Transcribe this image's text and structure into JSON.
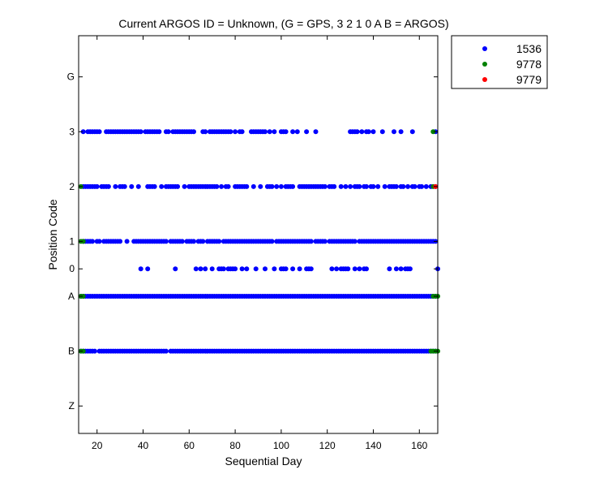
{
  "chart_data": {
    "type": "scatter",
    "title": "Current ARGOS ID = Unknown,  (G = GPS, 3 2 1 0 A B = ARGOS)",
    "xlabel": "Sequential Day",
    "ylabel": "Position Code",
    "xlim": [
      12,
      168
    ],
    "x_ticks": [
      20,
      40,
      60,
      80,
      100,
      120,
      140,
      160
    ],
    "y_categories": [
      "Z",
      "B",
      "A",
      "0",
      "1",
      "2",
      "3",
      "G"
    ],
    "y_category_values": [
      -2,
      0,
      2,
      3,
      4,
      6,
      8,
      10
    ],
    "ylim": [
      -3,
      11.5
    ],
    "grid": false,
    "legend_position": "outside-top-right",
    "series": [
      {
        "name": "1536",
        "color": "#0000ff",
        "points": {
          "3": [
            14,
            16,
            17,
            18,
            19,
            20,
            21,
            24,
            25,
            26,
            27,
            28,
            29,
            30,
            31,
            32,
            33,
            34,
            35,
            36,
            37,
            38,
            39,
            41,
            42,
            43,
            44,
            45,
            46,
            47,
            50,
            51,
            53,
            54,
            55,
            56,
            57,
            58,
            59,
            60,
            61,
            62,
            66,
            67,
            69,
            70,
            71,
            72,
            73,
            74,
            75,
            76,
            77,
            78,
            80,
            82,
            83,
            87,
            88,
            89,
            90,
            91,
            92,
            93,
            95,
            97,
            100,
            101,
            102,
            105,
            107,
            111,
            115,
            130,
            131,
            132,
            133,
            135,
            137,
            138,
            140,
            144,
            149,
            152,
            157,
            167
          ],
          "2": [
            14,
            15,
            16,
            17,
            18,
            19,
            20,
            22,
            23,
            24,
            25,
            28,
            30,
            31,
            32,
            35,
            38,
            42,
            43,
            44,
            45,
            48,
            50,
            51,
            52,
            53,
            54,
            55,
            58,
            60,
            61,
            62,
            63,
            64,
            65,
            66,
            67,
            68,
            69,
            70,
            71,
            72,
            74,
            76,
            77,
            80,
            81,
            82,
            83,
            84,
            85,
            88,
            91,
            94,
            95,
            96,
            98,
            100,
            102,
            103,
            104,
            105,
            108,
            109,
            110,
            111,
            112,
            113,
            114,
            115,
            116,
            117,
            118,
            119,
            121,
            122,
            123,
            126,
            128,
            130,
            132,
            133,
            134,
            136,
            137,
            139,
            140,
            142,
            145,
            147,
            148,
            149,
            150,
            152,
            153,
            155,
            157,
            158,
            160,
            161,
            163,
            165,
            167
          ],
          "1": [
            14,
            15,
            16,
            17,
            18,
            20,
            21,
            23,
            24,
            25,
            26,
            27,
            28,
            29,
            30,
            33,
            36,
            37,
            38,
            39,
            40,
            41,
            42,
            43,
            44,
            45,
            46,
            47,
            48,
            49,
            50,
            52,
            53,
            54,
            55,
            56,
            57,
            59,
            60,
            61,
            62,
            64,
            65,
            66,
            68,
            69,
            70,
            71,
            72,
            73,
            75,
            76,
            77,
            78,
            79,
            80,
            81,
            82,
            83,
            84,
            85,
            86,
            87,
            88,
            89,
            90,
            91,
            92,
            93,
            94,
            95,
            96,
            98,
            99,
            100,
            101,
            102,
            103,
            104,
            105,
            106,
            107,
            108,
            109,
            110,
            111,
            112,
            113,
            115,
            116,
            117,
            118,
            119,
            121,
            122,
            123,
            124,
            125,
            126,
            127,
            128,
            129,
            130,
            131,
            132,
            134,
            135,
            136,
            137,
            138,
            139,
            140,
            141,
            142,
            143,
            144,
            145,
            146,
            147,
            148,
            149,
            150,
            151,
            152,
            153,
            154,
            155,
            156,
            157,
            158,
            159,
            160,
            161,
            162,
            163,
            164,
            165,
            166,
            167
          ],
          "0": [
            39,
            42,
            54,
            63,
            65,
            67,
            70,
            73,
            74,
            75,
            77,
            78,
            79,
            80,
            83,
            85,
            89,
            93,
            97,
            100,
            101,
            102,
            105,
            108,
            111,
            112,
            113,
            122,
            124,
            126,
            127,
            128,
            129,
            132,
            134,
            136,
            137,
            147,
            150,
            152,
            154,
            155,
            156,
            168
          ],
          "A": [
            13,
            14,
            15,
            16,
            17,
            18,
            19,
            20,
            21,
            22,
            23,
            24,
            25,
            26,
            27,
            28,
            29,
            30,
            31,
            32,
            33,
            34,
            35,
            36,
            37,
            38,
            39,
            40,
            41,
            42,
            43,
            44,
            45,
            46,
            47,
            48,
            49,
            50,
            51,
            52,
            53,
            54,
            55,
            56,
            57,
            58,
            59,
            60,
            61,
            62,
            63,
            64,
            65,
            66,
            67,
            68,
            69,
            70,
            71,
            72,
            73,
            74,
            75,
            76,
            77,
            78,
            79,
            80,
            81,
            82,
            83,
            84,
            85,
            86,
            87,
            88,
            89,
            90,
            91,
            92,
            93,
            94,
            95,
            96,
            97,
            98,
            99,
            100,
            101,
            102,
            103,
            104,
            105,
            106,
            107,
            108,
            109,
            110,
            111,
            112,
            113,
            114,
            115,
            116,
            117,
            118,
            119,
            120,
            121,
            122,
            123,
            124,
            125,
            126,
            127,
            128,
            129,
            130,
            131,
            132,
            133,
            134,
            135,
            136,
            137,
            138,
            139,
            140,
            141,
            142,
            143,
            144,
            145,
            146,
            147,
            148,
            149,
            150,
            151,
            152,
            153,
            154,
            155,
            156,
            157,
            158,
            159,
            160,
            161,
            162,
            163,
            164,
            165,
            166,
            167
          ],
          "B": [
            13,
            14,
            15,
            16,
            17,
            18,
            19,
            21,
            22,
            23,
            24,
            25,
            26,
            27,
            28,
            29,
            30,
            31,
            32,
            33,
            34,
            35,
            36,
            37,
            38,
            39,
            40,
            41,
            42,
            43,
            44,
            45,
            46,
            47,
            48,
            49,
            50,
            52,
            53,
            54,
            55,
            56,
            57,
            58,
            59,
            60,
            61,
            62,
            63,
            64,
            65,
            66,
            67,
            68,
            69,
            70,
            71,
            72,
            73,
            74,
            75,
            76,
            77,
            78,
            79,
            80,
            81,
            82,
            83,
            84,
            85,
            86,
            87,
            88,
            89,
            90,
            91,
            92,
            93,
            94,
            95,
            96,
            97,
            98,
            99,
            100,
            101,
            102,
            103,
            104,
            105,
            106,
            107,
            108,
            109,
            110,
            111,
            112,
            113,
            114,
            115,
            116,
            117,
            118,
            119,
            120,
            121,
            122,
            123,
            124,
            125,
            126,
            127,
            128,
            129,
            130,
            131,
            132,
            133,
            134,
            135,
            136,
            137,
            138,
            139,
            140,
            141,
            142,
            143,
            144,
            145,
            146,
            147,
            148,
            149,
            150,
            151,
            152,
            153,
            154,
            155,
            156,
            157,
            158,
            159,
            160,
            161,
            162,
            163,
            164,
            165,
            166,
            167
          ]
        }
      },
      {
        "name": "9778",
        "color": "#008000",
        "points": {
          "3": [
            166
          ],
          "2": [
            13,
            166
          ],
          "1": [
            13,
            14
          ],
          "A": [
            13,
            14,
            166,
            167,
            168
          ],
          "B": [
            13,
            14,
            165,
            166,
            167,
            168
          ]
        }
      },
      {
        "name": "9779",
        "color": "#ff0000",
        "points": {
          "2": [
            167
          ]
        }
      }
    ]
  }
}
